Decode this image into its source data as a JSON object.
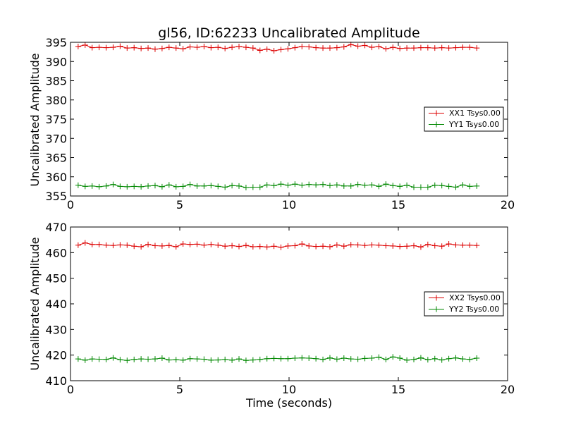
{
  "chart_data": [
    {
      "type": "line",
      "title": "gl56, ID:62233 Uncalibrated Amplitude",
      "xlabel": "",
      "ylabel": "Uncalibrated Amplitude",
      "xlim": [
        0,
        20
      ],
      "ylim": [
        355,
        395
      ],
      "xticks": [
        "0",
        "5",
        "10",
        "15",
        "20"
      ],
      "yticks": [
        "355",
        "360",
        "365",
        "370",
        "375",
        "380",
        "385",
        "390",
        "395"
      ],
      "legend_position": "center-right",
      "x": [
        0.35,
        0.67,
        0.99,
        1.31,
        1.63,
        1.95,
        2.27,
        2.59,
        2.91,
        3.23,
        3.55,
        3.87,
        4.19,
        4.51,
        4.83,
        5.15,
        5.47,
        5.79,
        6.11,
        6.43,
        6.75,
        7.07,
        7.39,
        7.71,
        8.03,
        8.35,
        8.67,
        8.99,
        9.31,
        9.63,
        9.95,
        10.27,
        10.59,
        10.91,
        11.23,
        11.55,
        11.87,
        12.19,
        12.51,
        12.83,
        13.15,
        13.47,
        13.79,
        14.11,
        14.43,
        14.75,
        15.07,
        15.39,
        15.71,
        16.03,
        16.35,
        16.67,
        16.99,
        17.31,
        17.63,
        17.95,
        18.27,
        18.59
      ],
      "series": [
        {
          "name": "XX1 Tsys0.00",
          "color": "#dd0000",
          "values": [
            393.9,
            394.3,
            393.6,
            393.7,
            393.6,
            393.7,
            394.0,
            393.5,
            393.6,
            393.4,
            393.5,
            393.2,
            393.4,
            393.7,
            393.5,
            393.3,
            393.8,
            393.7,
            393.9,
            393.6,
            393.7,
            393.4,
            393.7,
            393.9,
            393.7,
            393.5,
            392.9,
            393.2,
            392.8,
            393.1,
            393.3,
            393.6,
            393.9,
            393.8,
            393.6,
            393.5,
            393.5,
            393.6,
            393.8,
            394.4,
            394.0,
            394.2,
            393.7,
            393.9,
            393.3,
            393.7,
            393.4,
            393.5,
            393.5,
            393.6,
            393.6,
            393.5,
            393.6,
            393.5,
            393.6,
            393.7,
            393.7,
            393.5
          ]
        },
        {
          "name": "YY1 Tsys0.00",
          "color": "#008800",
          "values": [
            357.8,
            357.5,
            357.6,
            357.4,
            357.6,
            358.0,
            357.5,
            357.4,
            357.5,
            357.4,
            357.6,
            357.7,
            357.4,
            357.9,
            357.4,
            357.5,
            358.0,
            357.6,
            357.6,
            357.7,
            357.5,
            357.3,
            357.7,
            357.6,
            357.2,
            357.3,
            357.3,
            357.9,
            357.7,
            358.1,
            357.8,
            358.1,
            357.8,
            358.0,
            357.9,
            358.0,
            357.7,
            357.9,
            357.6,
            357.6,
            358.0,
            357.8,
            357.9,
            357.5,
            358.1,
            357.7,
            357.5,
            357.8,
            357.3,
            357.3,
            357.3,
            357.8,
            357.7,
            357.5,
            357.3,
            357.9,
            357.5,
            357.6
          ]
        }
      ]
    },
    {
      "type": "line",
      "title": "",
      "xlabel": "Time (seconds)",
      "ylabel": "Uncalibrated Amplitude",
      "xlim": [
        0,
        20
      ],
      "ylim": [
        410,
        470
      ],
      "xticks": [
        "0",
        "5",
        "10",
        "15",
        "20"
      ],
      "yticks": [
        "410",
        "420",
        "430",
        "440",
        "450",
        "460",
        "470"
      ],
      "legend_position": "center-right",
      "x": [
        0.35,
        0.67,
        0.99,
        1.31,
        1.63,
        1.95,
        2.27,
        2.59,
        2.91,
        3.23,
        3.55,
        3.87,
        4.19,
        4.51,
        4.83,
        5.15,
        5.47,
        5.79,
        6.11,
        6.43,
        6.75,
        7.07,
        7.39,
        7.71,
        8.03,
        8.35,
        8.67,
        8.99,
        9.31,
        9.63,
        9.95,
        10.27,
        10.59,
        10.91,
        11.23,
        11.55,
        11.87,
        12.19,
        12.51,
        12.83,
        13.15,
        13.47,
        13.79,
        14.11,
        14.43,
        14.75,
        15.07,
        15.39,
        15.71,
        16.03,
        16.35,
        16.67,
        16.99,
        17.31,
        17.63,
        17.95,
        18.27,
        18.59
      ],
      "series": [
        {
          "name": "XX2 Tsys0.00",
          "color": "#dd0000",
          "values": [
            462.9,
            463.8,
            463.2,
            463.2,
            462.9,
            462.8,
            463.0,
            462.9,
            462.5,
            462.3,
            463.2,
            462.7,
            462.6,
            462.8,
            462.3,
            463.4,
            463.2,
            463.3,
            462.9,
            463.2,
            462.9,
            462.5,
            462.7,
            462.4,
            462.8,
            462.3,
            462.4,
            462.2,
            462.5,
            462.1,
            462.6,
            462.7,
            463.4,
            462.6,
            462.4,
            462.5,
            462.3,
            463.0,
            462.5,
            463.1,
            463.0,
            462.8,
            463.0,
            462.9,
            462.7,
            462.6,
            462.4,
            462.5,
            462.7,
            462.2,
            463.2,
            462.7,
            462.5,
            463.4,
            463.0,
            462.9,
            462.9,
            462.8
          ]
        },
        {
          "name": "YY2 Tsys0.00",
          "color": "#008800",
          "values": [
            418.5,
            418.0,
            418.5,
            418.4,
            418.3,
            418.9,
            418.2,
            417.9,
            418.3,
            418.5,
            418.4,
            418.5,
            418.8,
            418.1,
            418.2,
            418.0,
            418.6,
            418.5,
            418.4,
            418.0,
            418.1,
            418.3,
            418.0,
            418.5,
            417.9,
            418.1,
            418.3,
            418.6,
            418.7,
            418.6,
            418.6,
            418.8,
            418.9,
            418.8,
            418.6,
            418.3,
            418.9,
            418.4,
            418.8,
            418.5,
            418.4,
            418.7,
            418.8,
            419.2,
            418.3,
            419.3,
            418.8,
            418.0,
            418.3,
            418.9,
            418.2,
            418.6,
            418.1,
            418.6,
            418.9,
            418.5,
            418.3,
            418.8
          ]
        }
      ]
    }
  ]
}
